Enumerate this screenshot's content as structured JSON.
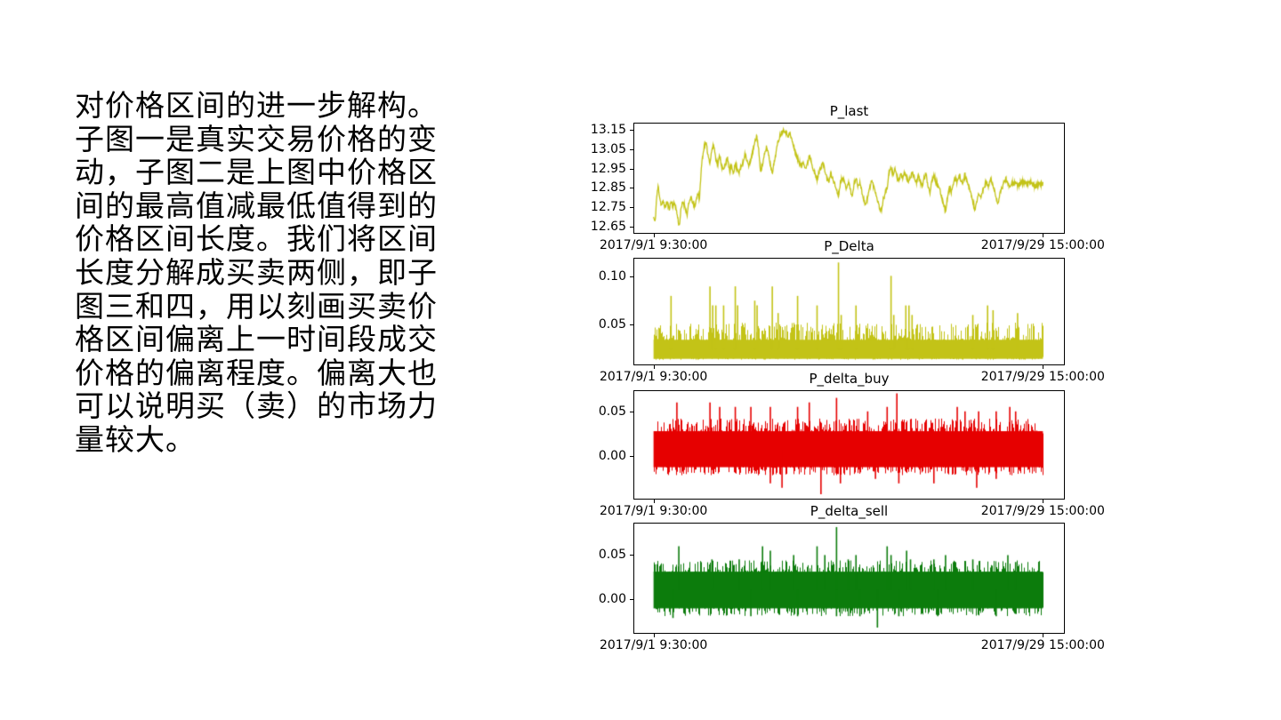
{
  "slide": {
    "background": "#ffffff",
    "text_color": "#000000",
    "text_block": {
      "lines": [
        "对价格区间的进一步解构。",
        "子图一是真实交易价格的变",
        "动，子图二是上图中价格区",
        "间的最高值减最低值得到的",
        "价格区间长度。我们将区间",
        "长度分解成买卖两侧，即子",
        "图三和四，用以刻画买卖价",
        "格区间偏离上一时间段成交",
        "价格的偏离程度。偏离大也",
        "可以说明买（卖）的市场力",
        "量较大。"
      ]
    }
  },
  "chart_data": [
    {
      "id": "P_last",
      "type": "line",
      "title": "P_last",
      "color": "#c3c317",
      "x_start_label": "2017/9/1 9:30:00",
      "x_end_label": "2017/9/29 15:00:00",
      "ylim": [
        12.627,
        13.182
      ],
      "yticks": [
        {
          "v": 13.15,
          "label": "13.15"
        },
        {
          "v": 13.05,
          "label": "13.05"
        },
        {
          "v": 12.95,
          "label": "12.95"
        },
        {
          "v": 12.85,
          "label": "12.85"
        },
        {
          "v": 12.75,
          "label": "12.75"
        },
        {
          "v": 12.65,
          "label": "12.65"
        }
      ],
      "noise": 0.011,
      "seed": 11,
      "points": [
        [
          0.0,
          12.7
        ],
        [
          0.004,
          12.67
        ],
        [
          0.008,
          12.8
        ],
        [
          0.012,
          12.86
        ],
        [
          0.016,
          12.8
        ],
        [
          0.02,
          12.76
        ],
        [
          0.025,
          12.78
        ],
        [
          0.03,
          12.75
        ],
        [
          0.035,
          12.78
        ],
        [
          0.04,
          12.74
        ],
        [
          0.045,
          12.78
        ],
        [
          0.05,
          12.76
        ],
        [
          0.055,
          12.77
        ],
        [
          0.06,
          12.72
        ],
        [
          0.066,
          12.65
        ],
        [
          0.07,
          12.73
        ],
        [
          0.075,
          12.78
        ],
        [
          0.08,
          12.76
        ],
        [
          0.086,
          12.71
        ],
        [
          0.09,
          12.76
        ],
        [
          0.095,
          12.8
        ],
        [
          0.1,
          12.78
        ],
        [
          0.105,
          12.75
        ],
        [
          0.11,
          12.79
        ],
        [
          0.115,
          12.83
        ],
        [
          0.118,
          12.78
        ],
        [
          0.121,
          12.9
        ],
        [
          0.125,
          13.0
        ],
        [
          0.13,
          13.06
        ],
        [
          0.135,
          13.08
        ],
        [
          0.14,
          13.02
        ],
        [
          0.145,
          12.98
        ],
        [
          0.15,
          13.05
        ],
        [
          0.155,
          13.07
        ],
        [
          0.16,
          13.0
        ],
        [
          0.165,
          12.97
        ],
        [
          0.17,
          13.02
        ],
        [
          0.175,
          12.96
        ],
        [
          0.18,
          12.94
        ],
        [
          0.185,
          12.98
        ],
        [
          0.19,
          13.0
        ],
        [
          0.195,
          12.94
        ],
        [
          0.2,
          12.96
        ],
        [
          0.205,
          12.93
        ],
        [
          0.21,
          12.97
        ],
        [
          0.215,
          12.95
        ],
        [
          0.22,
          12.93
        ],
        [
          0.225,
          12.96
        ],
        [
          0.23,
          12.98
        ],
        [
          0.235,
          13.03
        ],
        [
          0.24,
          12.99
        ],
        [
          0.245,
          12.96
        ],
        [
          0.25,
          13.0
        ],
        [
          0.255,
          13.04
        ],
        [
          0.26,
          13.08
        ],
        [
          0.265,
          13.12
        ],
        [
          0.27,
          13.05
        ],
        [
          0.272,
          12.99
        ],
        [
          0.275,
          12.94
        ],
        [
          0.28,
          12.97
        ],
        [
          0.285,
          13.02
        ],
        [
          0.29,
          13.06
        ],
        [
          0.295,
          13.03
        ],
        [
          0.3,
          12.97
        ],
        [
          0.305,
          12.93
        ],
        [
          0.31,
          12.98
        ],
        [
          0.315,
          13.04
        ],
        [
          0.32,
          13.09
        ],
        [
          0.325,
          13.12
        ],
        [
          0.33,
          13.14
        ],
        [
          0.335,
          13.15
        ],
        [
          0.34,
          13.14
        ],
        [
          0.345,
          13.12
        ],
        [
          0.35,
          13.13
        ],
        [
          0.355,
          13.1
        ],
        [
          0.36,
          13.06
        ],
        [
          0.365,
          13.03
        ],
        [
          0.37,
          13.0
        ],
        [
          0.375,
          12.98
        ],
        [
          0.38,
          12.96
        ],
        [
          0.385,
          12.99
        ],
        [
          0.39,
          12.95
        ],
        [
          0.395,
          12.97
        ],
        [
          0.4,
          13.02
        ],
        [
          0.405,
          12.99
        ],
        [
          0.41,
          12.95
        ],
        [
          0.415,
          12.92
        ],
        [
          0.42,
          12.89
        ],
        [
          0.425,
          12.93
        ],
        [
          0.43,
          12.96
        ],
        [
          0.435,
          12.98
        ],
        [
          0.44,
          12.94
        ],
        [
          0.445,
          12.9
        ],
        [
          0.45,
          12.88
        ],
        [
          0.455,
          12.92
        ],
        [
          0.46,
          12.9
        ],
        [
          0.465,
          12.87
        ],
        [
          0.47,
          12.84
        ],
        [
          0.475,
          12.81
        ],
        [
          0.48,
          12.88
        ],
        [
          0.485,
          12.91
        ],
        [
          0.49,
          12.88
        ],
        [
          0.495,
          12.85
        ],
        [
          0.5,
          12.88
        ],
        [
          0.505,
          12.85
        ],
        [
          0.51,
          12.8
        ],
        [
          0.515,
          12.87
        ],
        [
          0.52,
          12.9
        ],
        [
          0.525,
          12.86
        ],
        [
          0.53,
          12.88
        ],
        [
          0.535,
          12.83
        ],
        [
          0.54,
          12.79
        ],
        [
          0.545,
          12.76
        ],
        [
          0.55,
          12.8
        ],
        [
          0.555,
          12.85
        ],
        [
          0.56,
          12.89
        ],
        [
          0.565,
          12.86
        ],
        [
          0.57,
          12.83
        ],
        [
          0.575,
          12.79
        ],
        [
          0.58,
          12.75
        ],
        [
          0.585,
          12.73
        ],
        [
          0.59,
          12.79
        ],
        [
          0.595,
          12.82
        ],
        [
          0.6,
          12.85
        ],
        [
          0.605,
          12.93
        ],
        [
          0.61,
          12.95
        ],
        [
          0.615,
          12.92
        ],
        [
          0.62,
          12.95
        ],
        [
          0.625,
          12.91
        ],
        [
          0.63,
          12.88
        ],
        [
          0.635,
          12.92
        ],
        [
          0.64,
          12.9
        ],
        [
          0.645,
          12.93
        ],
        [
          0.65,
          12.9
        ],
        [
          0.655,
          12.88
        ],
        [
          0.66,
          12.91
        ],
        [
          0.665,
          12.93
        ],
        [
          0.67,
          12.9
        ],
        [
          0.675,
          12.88
        ],
        [
          0.68,
          12.91
        ],
        [
          0.685,
          12.88
        ],
        [
          0.69,
          12.86
        ],
        [
          0.695,
          12.9
        ],
        [
          0.7,
          12.92
        ],
        [
          0.705,
          12.86
        ],
        [
          0.71,
          12.83
        ],
        [
          0.715,
          12.89
        ],
        [
          0.72,
          12.92
        ],
        [
          0.725,
          12.88
        ],
        [
          0.73,
          12.86
        ],
        [
          0.735,
          12.84
        ],
        [
          0.74,
          12.8
        ],
        [
          0.745,
          12.77
        ],
        [
          0.75,
          12.73
        ],
        [
          0.755,
          12.8
        ],
        [
          0.76,
          12.85
        ],
        [
          0.765,
          12.83
        ],
        [
          0.77,
          12.87
        ],
        [
          0.775,
          12.9
        ],
        [
          0.78,
          12.88
        ],
        [
          0.785,
          12.91
        ],
        [
          0.79,
          12.89
        ],
        [
          0.795,
          12.87
        ],
        [
          0.8,
          12.92
        ],
        [
          0.805,
          12.88
        ],
        [
          0.81,
          12.85
        ],
        [
          0.815,
          12.82
        ],
        [
          0.82,
          12.78
        ],
        [
          0.825,
          12.74
        ],
        [
          0.83,
          12.77
        ],
        [
          0.835,
          12.82
        ],
        [
          0.84,
          12.8
        ],
        [
          0.845,
          12.83
        ],
        [
          0.85,
          12.86
        ],
        [
          0.855,
          12.88
        ],
        [
          0.86,
          12.85
        ],
        [
          0.865,
          12.9
        ],
        [
          0.87,
          12.87
        ],
        [
          0.875,
          12.84
        ],
        [
          0.88,
          12.8
        ],
        [
          0.885,
          12.77
        ],
        [
          0.89,
          12.82
        ],
        [
          0.895,
          12.85
        ],
        [
          0.9,
          12.88
        ],
        [
          0.905,
          12.9
        ],
        [
          0.91,
          12.87
        ],
        [
          0.915,
          12.86
        ],
        [
          0.92,
          12.88
        ],
        [
          0.925,
          12.87
        ],
        [
          0.93,
          12.88
        ],
        [
          0.935,
          12.86
        ],
        [
          0.94,
          12.87
        ],
        [
          0.95,
          12.88
        ],
        [
          0.96,
          12.87
        ],
        [
          0.97,
          12.88
        ],
        [
          0.98,
          12.86
        ],
        [
          0.99,
          12.87
        ],
        [
          1.0,
          12.87
        ]
      ]
    },
    {
      "id": "P_Delta",
      "type": "spikes",
      "title": "P_Delta",
      "color": "#c3c317",
      "x_start_label": "2017/9/1 9:30:00",
      "x_end_label": "2017/9/29 15:00:00",
      "ylim": [
        0.01,
        0.119
      ],
      "yticks": [
        {
          "v": 0.1,
          "label": "0.10"
        },
        {
          "v": 0.05,
          "label": "0.05"
        }
      ],
      "seed": 22,
      "texture": {
        "core": [
          0.014,
          0.034
        ],
        "band": [
          0.013,
          0.036
        ],
        "up_p": 0.5,
        "up_range": [
          0.036,
          0.052
        ],
        "down_p": 0.0,
        "down_range": [
          0,
          0
        ]
      },
      "spikes": [
        [
          0.045,
          0.08
        ],
        [
          0.145,
          0.09
        ],
        [
          0.152,
          0.07
        ],
        [
          0.16,
          0.07
        ],
        [
          0.18,
          0.07
        ],
        [
          0.21,
          0.09
        ],
        [
          0.216,
          0.07
        ],
        [
          0.26,
          0.075
        ],
        [
          0.266,
          0.07
        ],
        [
          0.305,
          0.09
        ],
        [
          0.32,
          0.062
        ],
        [
          0.37,
          0.08
        ],
        [
          0.42,
          0.07
        ],
        [
          0.475,
          0.115
        ],
        [
          0.482,
          0.06
        ],
        [
          0.52,
          0.07
        ],
        [
          0.61,
          0.101
        ],
        [
          0.617,
          0.06
        ],
        [
          0.648,
          0.07
        ],
        [
          0.656,
          0.07
        ],
        [
          0.664,
          0.06
        ],
        [
          0.82,
          0.06
        ],
        [
          0.858,
          0.07
        ],
        [
          0.872,
          0.065
        ],
        [
          0.935,
          0.062
        ]
      ],
      "neg_spikes": []
    },
    {
      "id": "P_delta_buy",
      "type": "spikes",
      "title": "P_delta_buy",
      "color": "#e60000",
      "x_start_label": "2017/9/1 9:30:00",
      "x_end_label": "2017/9/29 15:00:00",
      "ylim": [
        -0.045,
        0.0725
      ],
      "yticks": [
        {
          "v": 0.05,
          "label": "0.05"
        },
        {
          "v": 0.0,
          "label": "0.00"
        }
      ],
      "seed": 33,
      "texture": {
        "core": [
          -0.012,
          0.028
        ],
        "band": [
          -0.013,
          0.03
        ],
        "up_p": 0.5,
        "up_range": [
          0.03,
          0.042
        ],
        "down_p": 0.4,
        "down_range": [
          -0.014,
          -0.021
        ]
      },
      "spikes": [
        [
          0.06,
          0.06
        ],
        [
          0.145,
          0.06
        ],
        [
          0.17,
          0.055
        ],
        [
          0.21,
          0.055
        ],
        [
          0.25,
          0.055
        ],
        [
          0.3,
          0.055
        ],
        [
          0.37,
          0.055
        ],
        [
          0.4,
          0.06
        ],
        [
          0.47,
          0.065
        ],
        [
          0.55,
          0.05
        ],
        [
          0.6,
          0.055
        ],
        [
          0.625,
          0.07
        ],
        [
          0.78,
          0.055
        ],
        [
          0.8,
          0.05
        ],
        [
          0.835,
          0.05
        ],
        [
          0.88,
          0.05
        ],
        [
          0.915,
          0.055
        ],
        [
          0.93,
          0.05
        ]
      ],
      "neg_spikes": [
        [
          0.3,
          -0.03
        ],
        [
          0.33,
          -0.035
        ],
        [
          0.43,
          -0.042
        ],
        [
          0.48,
          -0.03
        ],
        [
          0.57,
          -0.025
        ],
        [
          0.63,
          -0.03
        ],
        [
          0.72,
          -0.03
        ],
        [
          0.83,
          -0.035
        ],
        [
          0.88,
          -0.025
        ]
      ]
    },
    {
      "id": "P_delta_sell",
      "type": "spikes",
      "title": "P_delta_sell",
      "color": "#0c7c0c",
      "x_start_label": "2017/9/1 9:30:00",
      "x_end_label": "2017/9/29 15:00:00",
      "ylim": [
        -0.037,
        0.086
      ],
      "yticks": [
        {
          "v": 0.05,
          "label": "0.05"
        },
        {
          "v": 0.0,
          "label": "0.00"
        }
      ],
      "seed": 44,
      "texture": {
        "core": [
          -0.011,
          0.031
        ],
        "band": [
          -0.012,
          0.032
        ],
        "up_p": 0.45,
        "up_range": [
          0.032,
          0.044
        ],
        "down_p": 0.35,
        "down_range": [
          -0.013,
          -0.02
        ]
      },
      "spikes": [
        [
          0.065,
          0.06
        ],
        [
          0.15,
          0.045
        ],
        [
          0.22,
          0.045
        ],
        [
          0.28,
          0.06
        ],
        [
          0.3,
          0.055
        ],
        [
          0.36,
          0.05
        ],
        [
          0.42,
          0.06
        ],
        [
          0.44,
          0.05
        ],
        [
          0.47,
          0.082
        ],
        [
          0.5,
          0.045
        ],
        [
          0.52,
          0.05
        ],
        [
          0.6,
          0.06
        ],
        [
          0.61,
          0.05
        ],
        [
          0.65,
          0.055
        ],
        [
          0.66,
          0.045
        ],
        [
          0.72,
          0.045
        ],
        [
          0.75,
          0.05
        ],
        [
          0.82,
          0.045
        ],
        [
          0.91,
          0.05
        ],
        [
          0.93,
          0.042
        ]
      ],
      "neg_spikes": [
        [
          0.05,
          -0.022
        ],
        [
          0.25,
          -0.02
        ],
        [
          0.37,
          -0.02
        ],
        [
          0.47,
          -0.02
        ],
        [
          0.53,
          -0.02
        ],
        [
          0.575,
          -0.033
        ],
        [
          0.63,
          -0.02
        ],
        [
          0.73,
          -0.02
        ],
        [
          0.88,
          -0.02
        ]
      ]
    }
  ]
}
